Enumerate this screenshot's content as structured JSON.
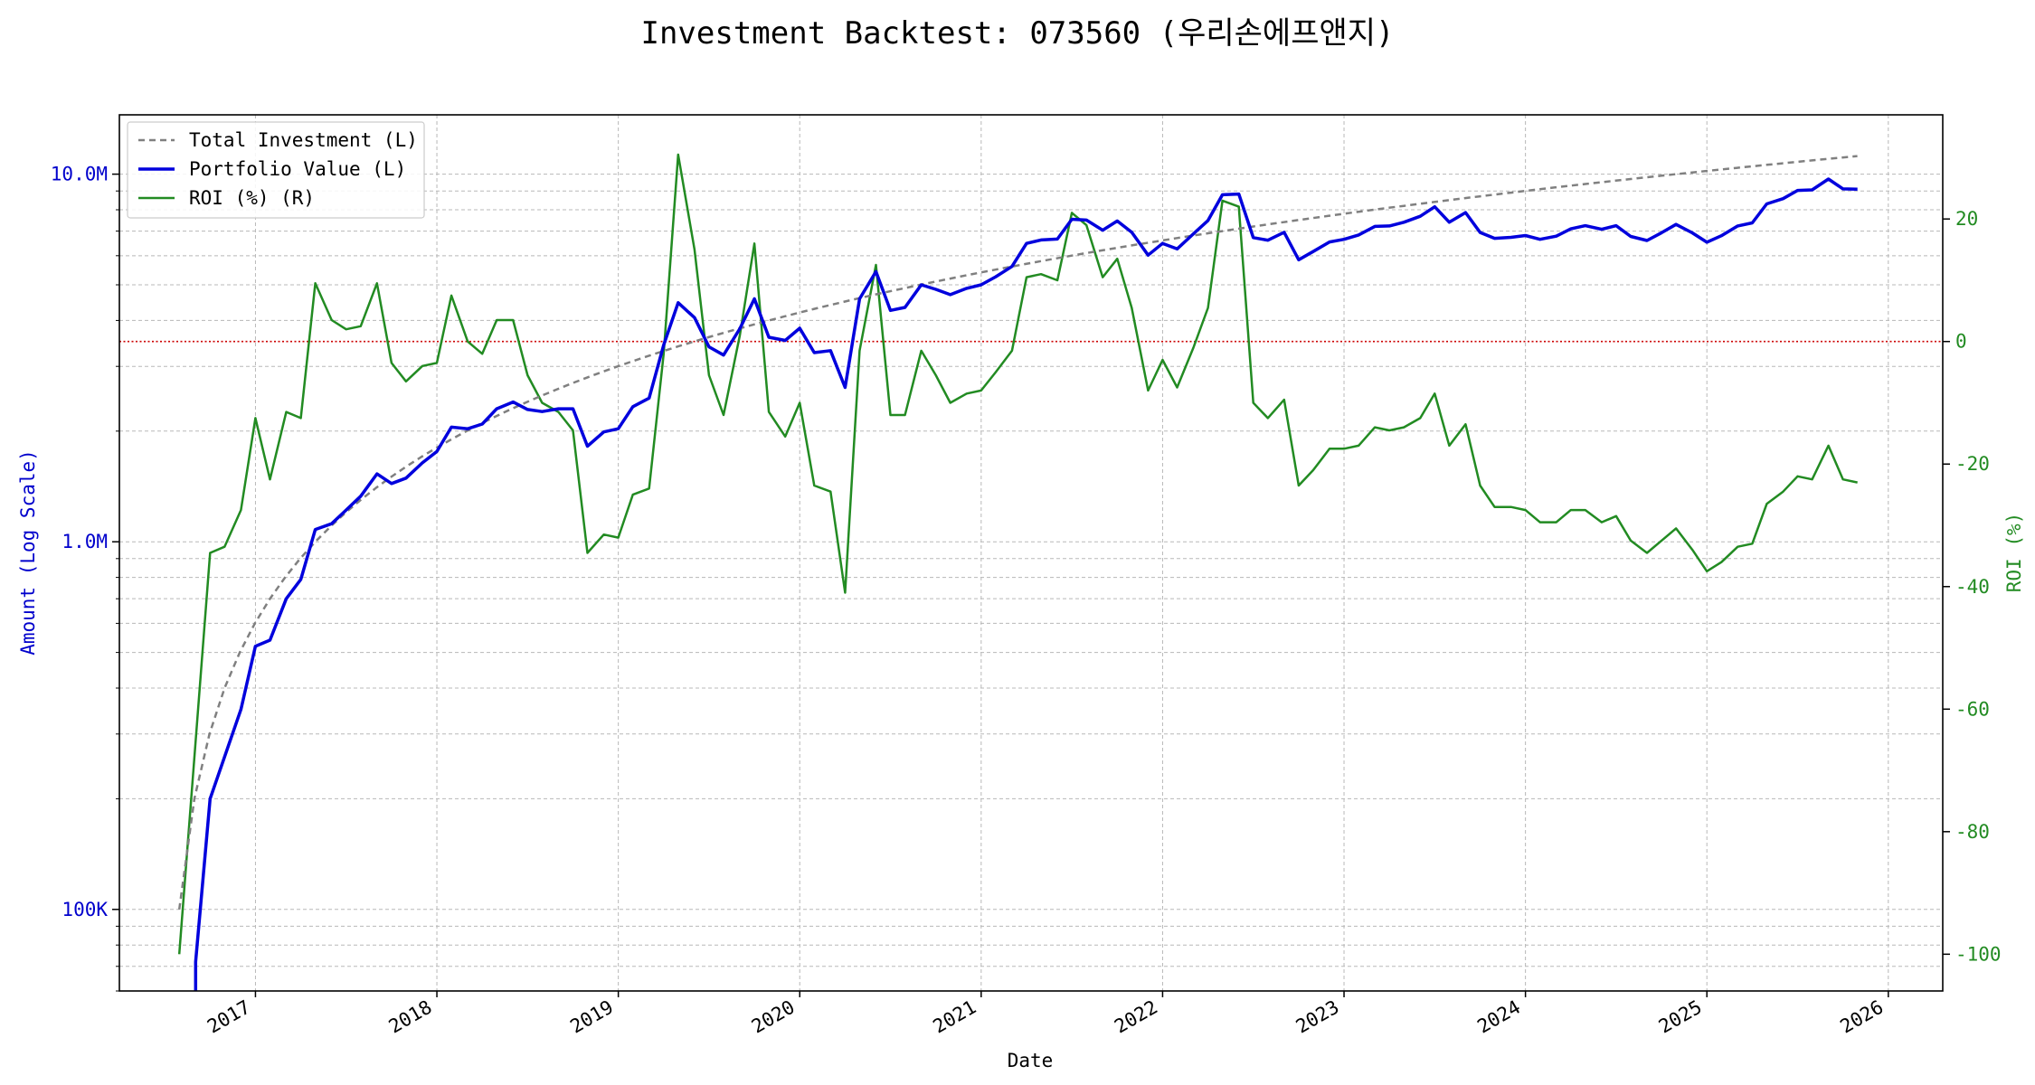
{
  "chart_data": {
    "type": "line",
    "title": "Investment Backtest: 073560 (우리손에프앤지)",
    "xlabel": "Date",
    "ylabel_left": "Amount (Log Scale)",
    "ylabel_right": "ROI (%)",
    "left_scale": "log",
    "left_ylim": [
      60000,
      14500000
    ],
    "right_ylim": [
      -106,
      37
    ],
    "xlim": [
      2016.25,
      2026.3
    ],
    "grid": true,
    "legend_position": "upper-left",
    "x_ticks": [
      {
        "label": "2017",
        "value": 2017
      },
      {
        "label": "2018",
        "value": 2018
      },
      {
        "label": "2019",
        "value": 2019
      },
      {
        "label": "2020",
        "value": 2020
      },
      {
        "label": "2021",
        "value": 2021
      },
      {
        "label": "2022",
        "value": 2022
      },
      {
        "label": "2023",
        "value": 2023
      },
      {
        "label": "2024",
        "value": 2024
      },
      {
        "label": "2025",
        "value": 2025
      },
      {
        "label": "2026",
        "value": 2026
      }
    ],
    "left_ticks": [
      {
        "label": "100K",
        "value": 100000
      },
      {
        "label": "1.0M",
        "value": 1000000
      },
      {
        "label": "10.0M",
        "value": 10000000
      }
    ],
    "right_ticks": [
      {
        "label": "20",
        "value": 20
      },
      {
        "label": "0",
        "value": 0
      },
      {
        "label": "-20",
        "value": -20
      },
      {
        "label": "-40",
        "value": -40
      },
      {
        "label": "-60",
        "value": -60
      },
      {
        "label": "-80",
        "value": -80
      },
      {
        "label": "-100",
        "value": -100
      }
    ],
    "reference_line": {
      "axis": "right",
      "value": 0,
      "color": "#cc0000"
    },
    "series": [
      {
        "name": "Total Investment (L)",
        "axis": "left",
        "color": "#808080",
        "style": "dashed",
        "start": 2016.58,
        "step": 0.08333,
        "values": [
          100000,
          200000,
          300000,
          400000,
          500000,
          600000,
          700000,
          800000,
          900000,
          1000000,
          1100000,
          1200000,
          1300000,
          1400000,
          1500000,
          1600000,
          1700000,
          1800000,
          1900000,
          2000000,
          2100000,
          2200000,
          2300000,
          2400000,
          2500000,
          2600000,
          2700000,
          2800000,
          2900000,
          3000000,
          3100000,
          3200000,
          3300000,
          3400000,
          3500000,
          3600000,
          3700000,
          3800000,
          3900000,
          4000000,
          4100000,
          4200000,
          4300000,
          4400000,
          4500000,
          4600000,
          4700000,
          4800000,
          4900000,
          5000000,
          5100000,
          5200000,
          5300000,
          5400000,
          5500000,
          5600000,
          5700000,
          5800000,
          5900000,
          6000000,
          6100000,
          6200000,
          6300000,
          6400000,
          6500000,
          6600000,
          6700000,
          6800000,
          6900000,
          7000000,
          7100000,
          7200000,
          7300000,
          7400000,
          7500000,
          7600000,
          7700000,
          7800000,
          7900000,
          8000000,
          8100000,
          8200000,
          8300000,
          8400000,
          8500000,
          8600000,
          8700000,
          8800000,
          8900000,
          9000000,
          9100000,
          9200000,
          9300000,
          9400000,
          9500000,
          9600000,
          9700000,
          9800000,
          9900000,
          10000000,
          10100000,
          10200000,
          10300000,
          10400000,
          10500000,
          10600000,
          10700000,
          10800000,
          10900000,
          11000000,
          11100000,
          11200000
        ]
      },
      {
        "name": "Portfolio Value (L)",
        "axis": "left",
        "color": "#0000dd",
        "style": "solid",
        "points": [
          [
            2016.67,
            40000
          ],
          [
            2016.67,
            72000
          ],
          [
            2016.75,
            200000
          ],
          [
            2016.83,
            260000
          ],
          [
            2016.92,
            350000
          ],
          [
            2017.0,
            520000
          ],
          [
            2017.08,
            540000
          ],
          [
            2017.17,
            700000
          ],
          [
            2017.25,
            790000
          ],
          [
            2017.33,
            1080000
          ],
          [
            2017.42,
            1120000
          ],
          [
            2017.5,
            1220000
          ],
          [
            2017.58,
            1330000
          ],
          [
            2017.67,
            1530000
          ],
          [
            2017.75,
            1440000
          ],
          [
            2017.83,
            1490000
          ],
          [
            2017.92,
            1640000
          ],
          [
            2018.0,
            1760000
          ],
          [
            2018.08,
            2050000
          ],
          [
            2018.17,
            2030000
          ],
          [
            2018.25,
            2090000
          ],
          [
            2018.33,
            2300000
          ],
          [
            2018.42,
            2400000
          ],
          [
            2018.5,
            2290000
          ],
          [
            2018.58,
            2260000
          ],
          [
            2018.67,
            2300000
          ],
          [
            2018.75,
            2300000
          ],
          [
            2018.83,
            1820000
          ],
          [
            2018.92,
            1990000
          ],
          [
            2019.0,
            2030000
          ],
          [
            2019.08,
            2330000
          ],
          [
            2019.17,
            2460000
          ],
          [
            2019.25,
            3430000
          ],
          [
            2019.33,
            4470000
          ],
          [
            2019.42,
            4070000
          ],
          [
            2019.5,
            3390000
          ],
          [
            2019.58,
            3220000
          ],
          [
            2019.67,
            3800000
          ],
          [
            2019.75,
            4580000
          ],
          [
            2019.83,
            3600000
          ],
          [
            2019.92,
            3530000
          ],
          [
            2020.0,
            3810000
          ],
          [
            2020.08,
            3270000
          ],
          [
            2020.17,
            3310000
          ],
          [
            2020.25,
            2630000
          ],
          [
            2020.33,
            4580000
          ],
          [
            2020.42,
            5430000
          ],
          [
            2020.5,
            4260000
          ],
          [
            2020.58,
            4340000
          ],
          [
            2020.67,
            5000000
          ],
          [
            2020.75,
            4860000
          ],
          [
            2020.83,
            4700000
          ],
          [
            2020.92,
            4890000
          ],
          [
            2021.0,
            5000000
          ],
          [
            2021.08,
            5260000
          ],
          [
            2021.17,
            5610000
          ],
          [
            2021.25,
            6480000
          ],
          [
            2021.33,
            6620000
          ],
          [
            2021.42,
            6660000
          ],
          [
            2021.5,
            7540000
          ],
          [
            2021.58,
            7500000
          ],
          [
            2021.67,
            7040000
          ],
          [
            2021.75,
            7460000
          ],
          [
            2021.83,
            6950000
          ],
          [
            2021.92,
            6020000
          ],
          [
            2022.0,
            6480000
          ],
          [
            2022.08,
            6260000
          ],
          [
            2022.17,
            6880000
          ],
          [
            2022.25,
            7480000
          ],
          [
            2022.33,
            8790000
          ],
          [
            2022.42,
            8830000
          ],
          [
            2022.5,
            6720000
          ],
          [
            2022.58,
            6610000
          ],
          [
            2022.67,
            6950000
          ],
          [
            2022.75,
            5850000
          ],
          [
            2022.83,
            6160000
          ],
          [
            2022.92,
            6540000
          ],
          [
            2023.0,
            6650000
          ],
          [
            2023.08,
            6830000
          ],
          [
            2023.17,
            7210000
          ],
          [
            2023.25,
            7230000
          ],
          [
            2023.33,
            7400000
          ],
          [
            2023.42,
            7680000
          ],
          [
            2023.5,
            8150000
          ],
          [
            2023.58,
            7400000
          ],
          [
            2023.67,
            7860000
          ],
          [
            2023.75,
            6940000
          ],
          [
            2023.83,
            6690000
          ],
          [
            2023.92,
            6730000
          ],
          [
            2024.0,
            6810000
          ],
          [
            2024.08,
            6650000
          ],
          [
            2024.17,
            6780000
          ],
          [
            2024.25,
            7100000
          ],
          [
            2024.33,
            7240000
          ],
          [
            2024.42,
            7080000
          ],
          [
            2024.5,
            7240000
          ],
          [
            2024.58,
            6770000
          ],
          [
            2024.67,
            6600000
          ],
          [
            2024.75,
            6930000
          ],
          [
            2024.83,
            7300000
          ],
          [
            2024.92,
            6920000
          ],
          [
            2025.0,
            6530000
          ],
          [
            2025.08,
            6800000
          ],
          [
            2025.17,
            7230000
          ],
          [
            2025.25,
            7370000
          ],
          [
            2025.33,
            8300000
          ],
          [
            2025.42,
            8580000
          ],
          [
            2025.5,
            9030000
          ],
          [
            2025.58,
            9060000
          ],
          [
            2025.67,
            9700000
          ],
          [
            2025.75,
            9120000
          ],
          [
            2025.83,
            9100000
          ]
        ]
      },
      {
        "name": "ROI (%) (R)",
        "axis": "right",
        "color": "#228b22",
        "style": "solid",
        "points": [
          [
            2016.58,
            -100
          ],
          [
            2016.75,
            -34.5
          ],
          [
            2016.83,
            -33.5
          ],
          [
            2016.92,
            -27.5
          ],
          [
            2017.0,
            -12.5
          ],
          [
            2017.08,
            -22.5
          ],
          [
            2017.17,
            -11.5
          ],
          [
            2017.25,
            -12.5
          ],
          [
            2017.33,
            9.5
          ],
          [
            2017.42,
            3.5
          ],
          [
            2017.5,
            2
          ],
          [
            2017.58,
            2.5
          ],
          [
            2017.67,
            9.5
          ],
          [
            2017.75,
            -3.5
          ],
          [
            2017.83,
            -6.5
          ],
          [
            2017.92,
            -4
          ],
          [
            2018.0,
            -3.5
          ],
          [
            2018.08,
            7.5
          ],
          [
            2018.17,
            0
          ],
          [
            2018.25,
            -2
          ],
          [
            2018.33,
            3.5
          ],
          [
            2018.42,
            3.5
          ],
          [
            2018.5,
            -5.5
          ],
          [
            2018.58,
            -10
          ],
          [
            2018.67,
            -11.5
          ],
          [
            2018.75,
            -14.5
          ],
          [
            2018.83,
            -34.5
          ],
          [
            2018.92,
            -31.5
          ],
          [
            2019.0,
            -32
          ],
          [
            2019.08,
            -25
          ],
          [
            2019.17,
            -24
          ],
          [
            2019.25,
            -2
          ],
          [
            2019.33,
            30.5
          ],
          [
            2019.42,
            15
          ],
          [
            2019.5,
            -5.5
          ],
          [
            2019.58,
            -12
          ],
          [
            2019.67,
            1
          ],
          [
            2019.75,
            16
          ],
          [
            2019.83,
            -11.5
          ],
          [
            2019.92,
            -15.5
          ],
          [
            2020.0,
            -10
          ],
          [
            2020.08,
            -23.5
          ],
          [
            2020.17,
            -24.5
          ],
          [
            2020.25,
            -41
          ],
          [
            2020.33,
            -1.5
          ],
          [
            2020.42,
            12.5
          ],
          [
            2020.5,
            -12
          ],
          [
            2020.58,
            -12
          ],
          [
            2020.67,
            -1.5
          ],
          [
            2020.75,
            -5.5
          ],
          [
            2020.83,
            -10
          ],
          [
            2020.92,
            -8.5
          ],
          [
            2021.0,
            -8
          ],
          [
            2021.08,
            -5
          ],
          [
            2021.17,
            -1.5
          ],
          [
            2021.25,
            10.5
          ],
          [
            2021.33,
            11
          ],
          [
            2021.42,
            10
          ],
          [
            2021.5,
            21
          ],
          [
            2021.58,
            19
          ],
          [
            2021.67,
            10.5
          ],
          [
            2021.75,
            13.5
          ],
          [
            2021.83,
            5.5
          ],
          [
            2021.92,
            -8
          ],
          [
            2022.0,
            -3
          ],
          [
            2022.08,
            -7.5
          ],
          [
            2022.17,
            -1
          ],
          [
            2022.25,
            5.5
          ],
          [
            2022.33,
            23
          ],
          [
            2022.42,
            22
          ],
          [
            2022.5,
            -10
          ],
          [
            2022.58,
            -12.5
          ],
          [
            2022.67,
            -9.5
          ],
          [
            2022.75,
            -23.5
          ],
          [
            2022.83,
            -21
          ],
          [
            2022.92,
            -17.5
          ],
          [
            2023.0,
            -17.5
          ],
          [
            2023.08,
            -17
          ],
          [
            2023.17,
            -14
          ],
          [
            2023.25,
            -14.5
          ],
          [
            2023.33,
            -14
          ],
          [
            2023.42,
            -12.5
          ],
          [
            2023.5,
            -8.5
          ],
          [
            2023.58,
            -17
          ],
          [
            2023.67,
            -13.5
          ],
          [
            2023.75,
            -23.5
          ],
          [
            2023.83,
            -27
          ],
          [
            2023.92,
            -27
          ],
          [
            2024.0,
            -27.5
          ],
          [
            2024.08,
            -29.5
          ],
          [
            2024.17,
            -29.5
          ],
          [
            2024.25,
            -27.5
          ],
          [
            2024.33,
            -27.5
          ],
          [
            2024.42,
            -29.5
          ],
          [
            2024.5,
            -28.5
          ],
          [
            2024.58,
            -32.5
          ],
          [
            2024.67,
            -34.5
          ],
          [
            2024.75,
            -32.5
          ],
          [
            2024.83,
            -30.5
          ],
          [
            2024.92,
            -34
          ],
          [
            2025.0,
            -37.5
          ],
          [
            2025.08,
            -36
          ],
          [
            2025.17,
            -33.5
          ],
          [
            2025.25,
            -33
          ],
          [
            2025.33,
            -26.5
          ],
          [
            2025.42,
            -24.5
          ],
          [
            2025.5,
            -22
          ],
          [
            2025.58,
            -22.5
          ],
          [
            2025.67,
            -17
          ],
          [
            2025.75,
            -22.5
          ],
          [
            2025.83,
            -23
          ]
        ]
      }
    ]
  }
}
